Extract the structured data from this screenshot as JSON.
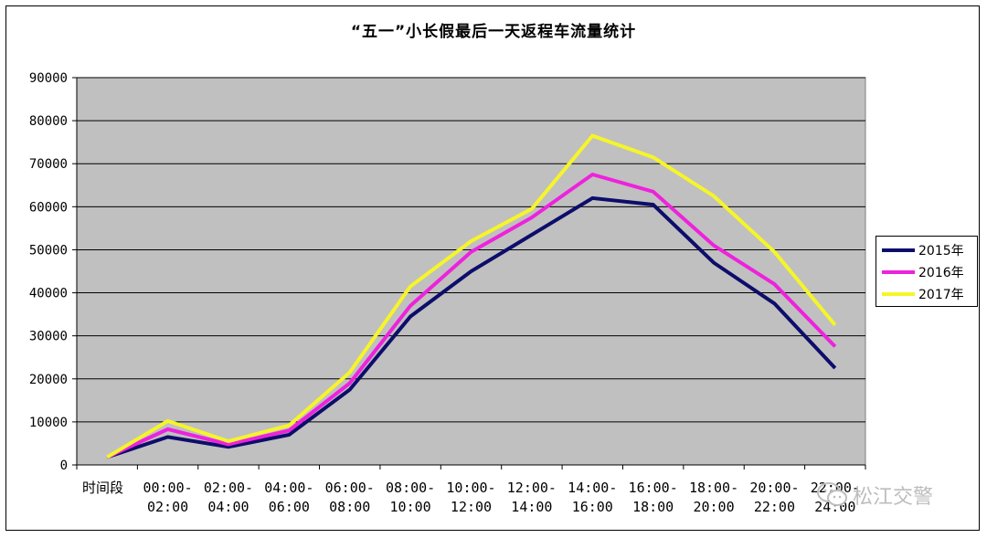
{
  "chart_data": {
    "type": "line",
    "title": "“五一”小长假最后一天返程车流量统计",
    "xlabel": "时间段",
    "ylabel": "",
    "ylim": [
      0,
      90000
    ],
    "yticks": [
      0,
      10000,
      20000,
      30000,
      40000,
      50000,
      60000,
      70000,
      80000,
      90000
    ],
    "categories": [
      [
        "",
        ""
      ],
      [
        "00:00-",
        "02:00"
      ],
      [
        "02:00-",
        "04:00"
      ],
      [
        "04:00-",
        "06:00"
      ],
      [
        "06:00-",
        "08:00"
      ],
      [
        "08:00-",
        "10:00"
      ],
      [
        "10:00-",
        "12:00"
      ],
      [
        "12:00-",
        "14:00"
      ],
      [
        "14:00-",
        "16:00"
      ],
      [
        "16:00-",
        "18:00"
      ],
      [
        "18:00-",
        "20:00"
      ],
      [
        "20:00-",
        "22:00"
      ],
      [
        "22:00-",
        "24:00"
      ]
    ],
    "series": [
      {
        "name": "2015年",
        "color": "#0d0d6b",
        "values": [
          1800,
          6500,
          4200,
          7000,
          17500,
          34500,
          45000,
          53500,
          62000,
          60500,
          47000,
          37500,
          22500
        ]
      },
      {
        "name": "2016年",
        "color": "#ee22dd",
        "values": [
          1800,
          8300,
          4800,
          8000,
          19000,
          37000,
          49500,
          57500,
          67500,
          63500,
          51000,
          42000,
          27500
        ]
      },
      {
        "name": "2017年",
        "color": "#f5f52a",
        "values": [
          1800,
          10200,
          5500,
          9200,
          21500,
          41500,
          52000,
          59500,
          76500,
          71500,
          62500,
          49500,
          32500
        ]
      }
    ],
    "grid": true,
    "legend_position": "right"
  },
  "watermark": {
    "text": "松江交警",
    "icon": "wechat-icon"
  }
}
